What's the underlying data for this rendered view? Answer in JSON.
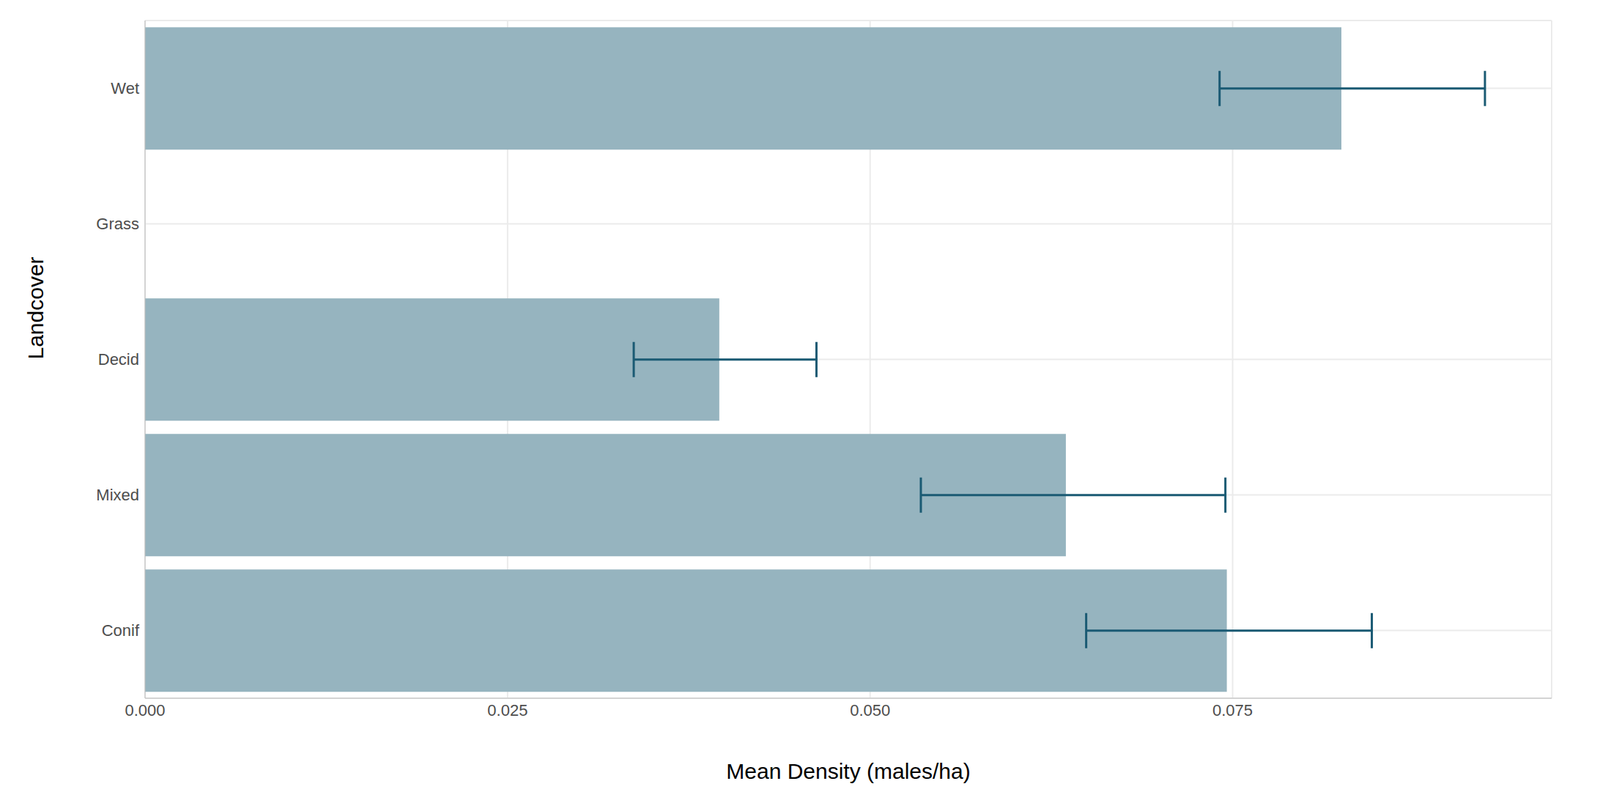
{
  "chart_data": {
    "type": "bar",
    "orientation": "horizontal",
    "x_label": "Mean Density (males/ha)",
    "y_label": "Landcover",
    "categories": [
      "Wet",
      "Grass",
      "Decid",
      "Mixed",
      "Conif"
    ],
    "values": [
      0.0825,
      0,
      0.0396,
      0.0635,
      0.0746
    ],
    "error_low": [
      0.0741,
      0,
      0.0337,
      0.0535,
      0.0649
    ],
    "error_high": [
      0.0924,
      0,
      0.0463,
      0.0745,
      0.0846
    ],
    "color": "#96b4bf",
    "xlim": [
      0,
      0.097
    ],
    "xticks": [
      {
        "value": 0,
        "label": "0.000"
      },
      {
        "value": 0.025,
        "label": "0.025"
      },
      {
        "value": 0.05,
        "label": "0.050"
      },
      {
        "value": 0.075,
        "label": "0.075"
      }
    ],
    "grid": true
  }
}
